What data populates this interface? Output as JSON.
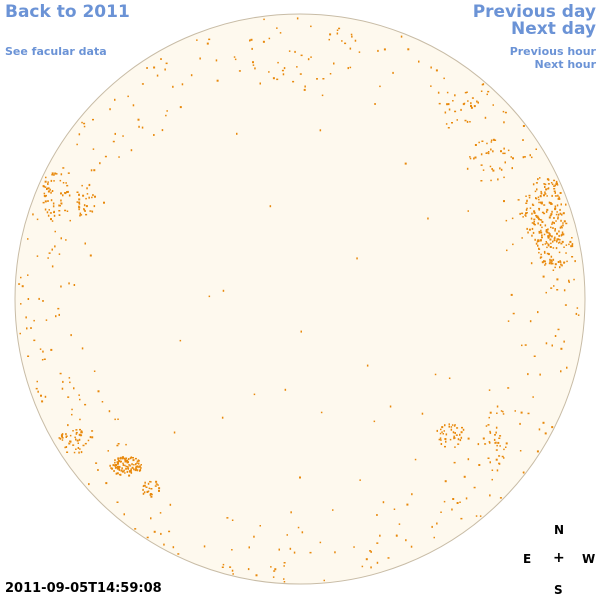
{
  "nav": {
    "back_label": "Back to 2011",
    "facular_label": "See facular data",
    "prev_day_label": "Previous day",
    "next_day_label": "Next day",
    "prev_hour_label": "Previous hour",
    "next_hour_label": "Next hour"
  },
  "timestamp": "2011-09-05T14:59:08",
  "compass": {
    "north": "N",
    "east": "E",
    "center": "+",
    "west": "W",
    "south": "S"
  },
  "colors": {
    "link": "#6b93d6",
    "disk_fill": "#fef9ee",
    "disk_border": "#c8bca6",
    "plage": "#e8890c"
  }
}
